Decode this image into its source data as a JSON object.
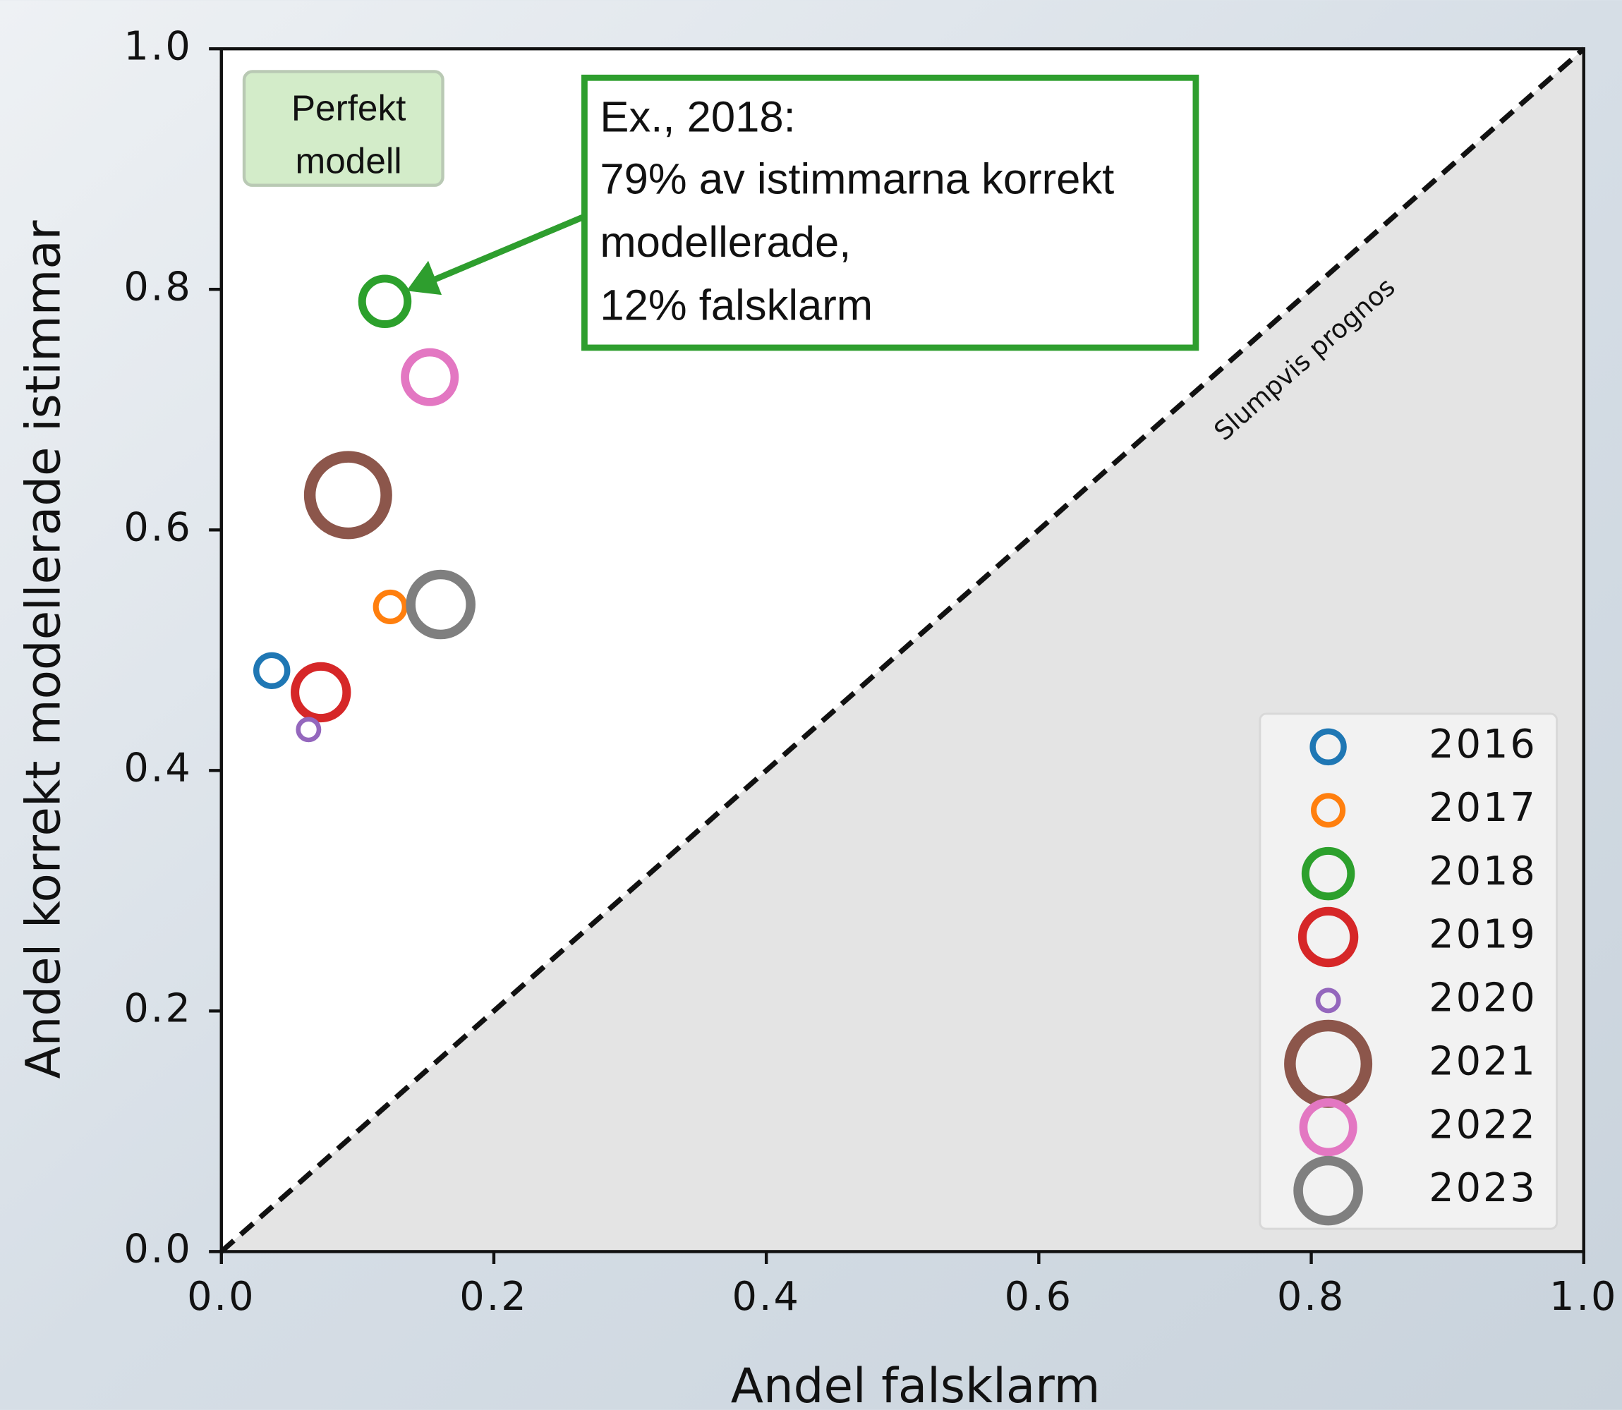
{
  "chart_data": {
    "type": "scatter",
    "xlabel": "Andel falsklarm",
    "ylabel": "Andel korrekt modellerade istimmar",
    "xlim": [
      0,
      1
    ],
    "ylim": [
      0,
      1
    ],
    "xticks": [
      {
        "value": 0,
        "label": "0.0"
      },
      0.2,
      0.4,
      0.6,
      0.8,
      {
        "value": 1,
        "label": "1.0"
      }
    ],
    "yticks": [
      {
        "value": 0,
        "label": "0.0"
      },
      0.2,
      0.4,
      0.6,
      0.8,
      {
        "value": 1,
        "label": "1.0"
      }
    ],
    "legend": "lower right",
    "series": [
      {
        "name": "2016",
        "color": "#1f77b4",
        "x": [
          0.037
        ],
        "y": [
          0.483
        ],
        "sizes": [
          15
        ]
      },
      {
        "name": "2017",
        "color": "#ff7f0e",
        "x": [
          0.124
        ],
        "y": [
          0.536
        ],
        "sizes": [
          14
        ]
      },
      {
        "name": "2018",
        "color": "#2ca02c",
        "x": [
          0.12
        ],
        "y": [
          0.79
        ],
        "sizes": [
          22
        ]
      },
      {
        "name": "2019",
        "color": "#d62728",
        "x": [
          0.073
        ],
        "y": [
          0.465
        ],
        "sizes": [
          25
        ]
      },
      {
        "name": "2020",
        "color": "#9467bd",
        "x": [
          0.064
        ],
        "y": [
          0.434
        ],
        "sizes": [
          10
        ]
      },
      {
        "name": "2021",
        "color": "#8c564b",
        "x": [
          0.093
        ],
        "y": [
          0.629
        ],
        "sizes": [
          37
        ]
      },
      {
        "name": "2022",
        "color": "#e377c2",
        "x": [
          0.153
        ],
        "y": [
          0.727
        ],
        "sizes": [
          24
        ]
      },
      {
        "name": "2023",
        "color": "#7f7f7f",
        "x": [
          0.161
        ],
        "y": [
          0.538
        ],
        "sizes": [
          29
        ]
      }
    ],
    "reference_line_label": "Slumpvis prognos",
    "perfect_label": [
      "Perfekt",
      "modell"
    ],
    "callout": [
      "Ex., 2018:",
      "79% av istimmarna korrekt",
      "modellerade,",
      "12% falsklarm"
    ]
  }
}
